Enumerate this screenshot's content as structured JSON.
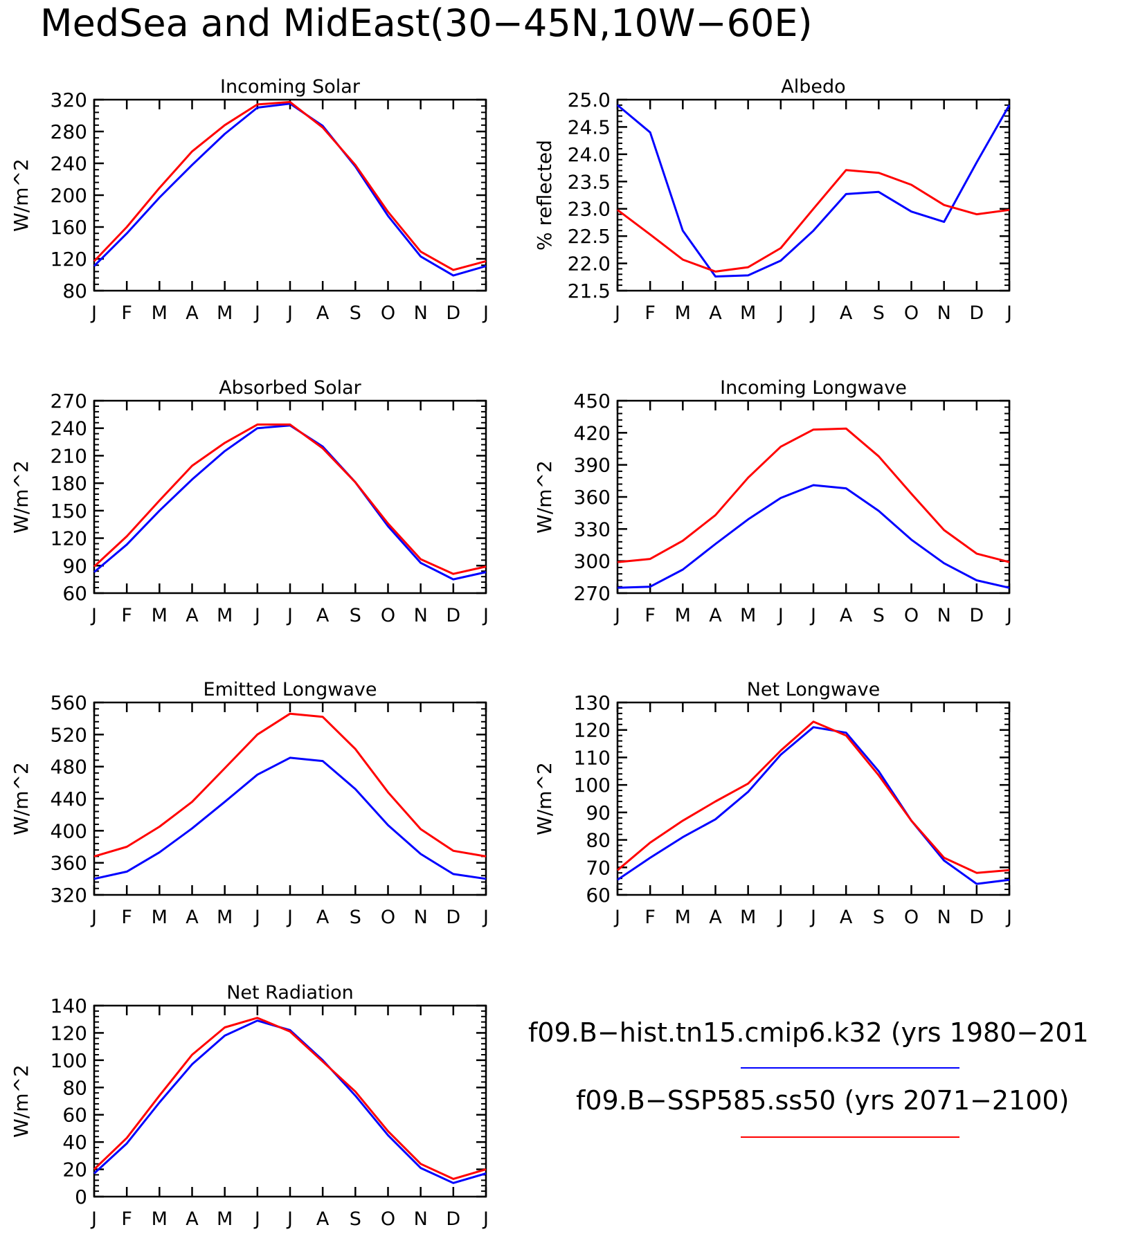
{
  "title": "MedSea and MidEast(30−45N,10W−60E)",
  "months": [
    "J",
    "F",
    "M",
    "A",
    "M",
    "J",
    "J",
    "A",
    "S",
    "O",
    "N",
    "D",
    "J"
  ],
  "colors": {
    "hist": "#0000ff",
    "ssp": "#ff0000"
  },
  "legend": [
    {
      "label": "f09.B−hist.tn15.cmip6.k32 (yrs 1980−201",
      "color": "#0000ff"
    },
    {
      "label": "f09.B−SSP585.ss50 (yrs 2071−2100)",
      "color": "#ff0000"
    }
  ],
  "chart_data": [
    {
      "type": "line",
      "title": "Incoming Solar",
      "ylabel": "W/m^2",
      "ylim": [
        80,
        320
      ],
      "yticks": [
        80,
        120,
        160,
        200,
        240,
        280,
        320
      ],
      "ytick_labels": [
        "80",
        "120",
        "160",
        "200",
        "240",
        "280",
        "320"
      ],
      "categories": [
        "J",
        "F",
        "M",
        "A",
        "M",
        "J",
        "J",
        "A",
        "S",
        "O",
        "N",
        "D",
        "J"
      ],
      "series": [
        {
          "values": [
            111,
            152,
            197,
            238,
            277,
            310,
            315,
            287,
            236,
            174,
            123,
            99,
            111
          ]
        },
        {
          "values": [
            117,
            160,
            209,
            255,
            288,
            314,
            317,
            285,
            238,
            179,
            129,
            106,
            117
          ]
        }
      ]
    },
    {
      "type": "line",
      "title": "Albedo",
      "ylabel": "% reflected",
      "ylim": [
        21.5,
        25.0
      ],
      "yticks": [
        21.5,
        22.0,
        22.5,
        23.0,
        23.5,
        24.0,
        24.5,
        25.0
      ],
      "ytick_labels": [
        "21.5",
        "22.0",
        "22.5",
        "23.0",
        "23.5",
        "24.0",
        "24.5",
        "25.0"
      ],
      "categories": [
        "J",
        "F",
        "M",
        "A",
        "M",
        "J",
        "J",
        "A",
        "S",
        "O",
        "N",
        "D",
        "J"
      ],
      "series": [
        {
          "values": [
            24.9,
            24.4,
            22.6,
            21.76,
            21.78,
            22.05,
            22.6,
            23.27,
            23.31,
            22.95,
            22.76,
            23.85,
            24.9
          ]
        },
        {
          "values": [
            22.98,
            22.53,
            22.07,
            21.85,
            21.93,
            22.28,
            23.0,
            23.71,
            23.66,
            23.44,
            23.07,
            22.9,
            22.98
          ]
        }
      ]
    },
    {
      "type": "line",
      "title": "Absorbed Solar",
      "ylabel": "W/m^2",
      "ylim": [
        60,
        270
      ],
      "yticks": [
        60,
        90,
        120,
        150,
        180,
        210,
        240,
        270
      ],
      "ytick_labels": [
        "60",
        "90",
        "120",
        "150",
        "180",
        "210",
        "240",
        "270"
      ],
      "categories": [
        "J",
        "F",
        "M",
        "A",
        "M",
        "J",
        "J",
        "A",
        "S",
        "O",
        "N",
        "D",
        "J"
      ],
      "series": [
        {
          "values": [
            83,
            113,
            150,
            184,
            215,
            240,
            243,
            220,
            181,
            133,
            93,
            75,
            83
          ]
        },
        {
          "values": [
            89,
            122,
            161,
            199,
            224,
            244,
            244,
            218,
            181,
            136,
            97,
            81,
            89
          ]
        }
      ]
    },
    {
      "type": "line",
      "title": "Incoming Longwave",
      "ylabel": "W/m^2",
      "ylim": [
        270,
        450
      ],
      "yticks": [
        270,
        300,
        330,
        360,
        390,
        420,
        450
      ],
      "ytick_labels": [
        "270",
        "300",
        "330",
        "360",
        "390",
        "420",
        "450"
      ],
      "categories": [
        "J",
        "F",
        "M",
        "A",
        "M",
        "J",
        "J",
        "A",
        "S",
        "O",
        "N",
        "D",
        "J"
      ],
      "series": [
        {
          "values": [
            275,
            276,
            292,
            316,
            339,
            359,
            371,
            368,
            347,
            320,
            298,
            282,
            275
          ]
        },
        {
          "values": [
            299,
            302,
            319,
            343,
            378,
            407,
            423,
            424,
            398,
            363,
            329,
            307,
            299
          ]
        }
      ]
    },
    {
      "type": "line",
      "title": "Emitted Longwave",
      "ylabel": "W/m^2",
      "ylim": [
        320,
        560
      ],
      "yticks": [
        320,
        360,
        400,
        440,
        480,
        520,
        560
      ],
      "ytick_labels": [
        "320",
        "360",
        "400",
        "440",
        "480",
        "520",
        "560"
      ],
      "categories": [
        "J",
        "F",
        "M",
        "A",
        "M",
        "J",
        "J",
        "A",
        "S",
        "O",
        "N",
        "D",
        "J"
      ],
      "series": [
        {
          "values": [
            340,
            349,
            373,
            403,
            436,
            470,
            491,
            487,
            452,
            407,
            371,
            346,
            340
          ]
        },
        {
          "values": [
            368,
            380,
            405,
            436,
            478,
            520,
            546,
            542,
            502,
            448,
            402,
            375,
            368
          ]
        }
      ]
    },
    {
      "type": "line",
      "title": "Net Longwave",
      "ylabel": "W/m^2",
      "ylim": [
        60,
        130
      ],
      "yticks": [
        60,
        70,
        80,
        90,
        100,
        110,
        120,
        130
      ],
      "ytick_labels": [
        "60",
        "70",
        "80",
        "90",
        "100",
        "110",
        "120",
        "130"
      ],
      "categories": [
        "J",
        "F",
        "M",
        "A",
        "M",
        "J",
        "J",
        "A",
        "S",
        "O",
        "N",
        "D",
        "J"
      ],
      "series": [
        {
          "values": [
            65.5,
            73.5,
            81,
            87.5,
            97.5,
            111,
            121,
            119,
            105,
            87,
            72.5,
            64,
            65.5
          ]
        },
        {
          "values": [
            69,
            79,
            87,
            94,
            100.5,
            112.5,
            123,
            118,
            103.5,
            87,
            73.5,
            68,
            69
          ]
        }
      ]
    },
    {
      "type": "line",
      "title": "Net Radiation",
      "ylabel": "W/m^2",
      "ylim": [
        0,
        140
      ],
      "yticks": [
        0,
        20,
        40,
        60,
        80,
        100,
        120,
        140
      ],
      "ytick_labels": [
        "0",
        "20",
        "40",
        "60",
        "80",
        "100",
        "120",
        "140"
      ],
      "categories": [
        "J",
        "F",
        "M",
        "A",
        "M",
        "J",
        "J",
        "A",
        "S",
        "O",
        "N",
        "D",
        "J"
      ],
      "series": [
        {
          "values": [
            17,
            39,
            69,
            97,
            118,
            129,
            122,
            100,
            74,
            45,
            21,
            10,
            17
          ]
        },
        {
          "values": [
            20,
            43,
            74,
            104,
            124,
            131,
            121,
            99,
            77,
            48,
            24,
            13,
            20
          ]
        }
      ]
    }
  ]
}
